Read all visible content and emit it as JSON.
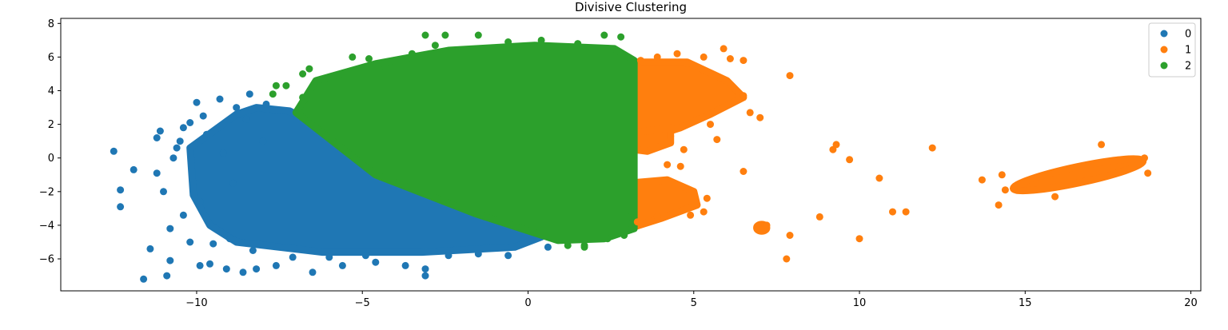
{
  "chart_data": {
    "type": "scatter",
    "title": "Divisive Clustering",
    "xlabel": "",
    "ylabel": "",
    "xlim": [
      -14.1,
      20.3
    ],
    "ylim": [
      -7.9,
      8.3
    ],
    "xticks": [
      -10,
      -5,
      0,
      5,
      10,
      15,
      20
    ],
    "yticks": [
      -6,
      -4,
      -2,
      0,
      2,
      4,
      6,
      8
    ],
    "xtick_labels": [
      "−10",
      "−5",
      "0",
      "5",
      "10",
      "15",
      "20"
    ],
    "ytick_labels": [
      "−6",
      "−4",
      "−2",
      "0",
      "2",
      "4",
      "6",
      "8"
    ],
    "grid": false,
    "legend_position": "top-right",
    "series": [
      {
        "name": "0",
        "color": "#1f77b4",
        "points": [
          [
            -12.5,
            0.4
          ],
          [
            -12.3,
            -1.9
          ],
          [
            -12.3,
            -2.9
          ],
          [
            -11.9,
            -0.7
          ],
          [
            -11.6,
            -7.2
          ],
          [
            -11.4,
            -5.4
          ],
          [
            -11.2,
            1.2
          ],
          [
            -11.1,
            1.6
          ],
          [
            -10.9,
            -7.0
          ],
          [
            -10.8,
            -6.1
          ],
          [
            -10.6,
            0.6
          ],
          [
            -10.4,
            1.8
          ],
          [
            -10.2,
            2.1
          ],
          [
            -10.0,
            3.3
          ],
          [
            -9.9,
            -6.4
          ],
          [
            -9.8,
            2.5
          ],
          [
            -9.6,
            -6.3
          ],
          [
            -9.3,
            3.5
          ],
          [
            -9.1,
            -6.6
          ],
          [
            -8.8,
            3.0
          ],
          [
            -8.6,
            -6.8
          ],
          [
            -8.4,
            3.8
          ],
          [
            -8.2,
            -6.6
          ],
          [
            -7.9,
            3.2
          ],
          [
            -7.6,
            -6.4
          ],
          [
            -6.5,
            -6.8
          ],
          [
            -5.6,
            -6.4
          ],
          [
            -4.6,
            -6.2
          ],
          [
            -3.7,
            -6.4
          ],
          [
            -3.1,
            -7.0
          ],
          [
            -3.1,
            -6.6
          ],
          [
            -2.4,
            -5.8
          ],
          [
            -1.5,
            -5.7
          ],
          [
            -0.6,
            -5.8
          ],
          [
            0.6,
            -5.3
          ],
          [
            -11.0,
            -2.0
          ],
          [
            -10.8,
            -4.2
          ],
          [
            -10.4,
            -3.4
          ],
          [
            -10.2,
            -5.0
          ],
          [
            -9.9,
            -2.6
          ],
          [
            -11.2,
            -0.9
          ],
          [
            -10.7,
            0.0
          ],
          [
            -9.5,
            -5.1
          ],
          [
            -9.0,
            -4.8
          ],
          [
            -8.3,
            -5.5
          ],
          [
            -7.1,
            -5.9
          ],
          [
            -6.0,
            -5.9
          ],
          [
            -4.9,
            -5.8
          ],
          [
            -10.5,
            1.0
          ],
          [
            -9.7,
            1.4
          ],
          [
            -9.2,
            0.3
          ],
          [
            -8.9,
            -1.5
          ],
          [
            -8.5,
            2.3
          ],
          [
            -8.0,
            1.0
          ]
        ],
        "clouds": [
          {
            "kind": "poly",
            "pts": [
              [
                -10.2,
                0.6
              ],
              [
                -8.8,
                2.6
              ],
              [
                -8.2,
                3.0
              ],
              [
                -7.2,
                2.8
              ],
              [
                0.4,
                -4.7
              ],
              [
                -0.4,
                -5.3
              ],
              [
                -3.2,
                -5.6
              ],
              [
                -6.2,
                -5.6
              ],
              [
                -8.8,
                -5.0
              ],
              [
                -9.6,
                -4.0
              ],
              [
                -10.1,
                -2.2
              ]
            ]
          }
        ]
      },
      {
        "name": "1",
        "color": "#ff7f0e",
        "points": [
          [
            3.4,
            5.8
          ],
          [
            3.9,
            6.0
          ],
          [
            4.5,
            6.2
          ],
          [
            4.8,
            5.6
          ],
          [
            5.3,
            6.0
          ],
          [
            5.9,
            6.5
          ],
          [
            6.1,
            5.9
          ],
          [
            6.5,
            5.8
          ],
          [
            7.9,
            4.9
          ],
          [
            6.5,
            3.7
          ],
          [
            6.7,
            2.7
          ],
          [
            7.0,
            2.4
          ],
          [
            5.5,
            2.0
          ],
          [
            5.7,
            1.1
          ],
          [
            4.3,
            1.3
          ],
          [
            4.7,
            0.5
          ],
          [
            4.2,
            -0.4
          ],
          [
            4.6,
            -0.5
          ],
          [
            5.4,
            -2.4
          ],
          [
            5.3,
            -3.2
          ],
          [
            4.9,
            -3.4
          ],
          [
            6.5,
            -0.8
          ],
          [
            7.1,
            -4.2
          ],
          [
            7.2,
            -4.0
          ],
          [
            7.8,
            -6.0
          ],
          [
            7.9,
            -4.6
          ],
          [
            8.8,
            -3.5
          ],
          [
            9.2,
            0.5
          ],
          [
            9.3,
            0.8
          ],
          [
            9.7,
            -0.1
          ],
          [
            10.0,
            -4.8
          ],
          [
            10.6,
            -1.2
          ],
          [
            11.0,
            -3.2
          ],
          [
            11.4,
            -3.2
          ],
          [
            12.2,
            0.6
          ],
          [
            13.7,
            -1.3
          ],
          [
            14.2,
            -2.8
          ],
          [
            14.3,
            -1.0
          ],
          [
            14.4,
            -1.9
          ],
          [
            18.7,
            -0.9
          ],
          [
            18.6,
            0.0
          ],
          [
            17.3,
            0.8
          ],
          [
            15.9,
            -2.3
          ],
          [
            3.3,
            -3.8
          ],
          [
            3.9,
            -3.5
          ]
        ],
        "clouds": [
          {
            "kind": "poly",
            "pts": [
              [
                3.2,
                5.7
              ],
              [
                4.8,
                5.7
              ],
              [
                6.0,
                4.6
              ],
              [
                6.5,
                3.6
              ],
              [
                5.5,
                2.6
              ],
              [
                4.6,
                1.8
              ],
              [
                3.8,
                1.3
              ],
              [
                3.2,
                1.6
              ]
            ]
          },
          {
            "kind": "poly",
            "pts": [
              [
                3.2,
                1.5
              ],
              [
                4.3,
                1.8
              ],
              [
                4.3,
                0.9
              ],
              [
                3.6,
                0.4
              ],
              [
                3.2,
                0.5
              ]
            ]
          },
          {
            "kind": "poly",
            "pts": [
              [
                3.0,
                -1.5
              ],
              [
                4.2,
                -1.3
              ],
              [
                5.0,
                -2.0
              ],
              [
                5.1,
                -2.8
              ],
              [
                4.0,
                -3.6
              ],
              [
                3.2,
                -4.1
              ],
              [
                3.0,
                -3.5
              ]
            ]
          },
          {
            "kind": "ellipse",
            "cx": 16.6,
            "cy": -1.0,
            "rx": 2.0,
            "ry": 0.48,
            "rot": -12
          },
          {
            "kind": "ellipse",
            "cx": 7.05,
            "cy": -4.15,
            "rx": 0.15,
            "ry": 0.2,
            "rot": 0
          }
        ]
      },
      {
        "name": "2",
        "color": "#2ca02c",
        "points": [
          [
            -7.6,
            4.3
          ],
          [
            -7.3,
            4.3
          ],
          [
            -7.7,
            3.8
          ],
          [
            -6.8,
            5.0
          ],
          [
            -6.6,
            5.3
          ],
          [
            -6.8,
            3.6
          ],
          [
            -5.3,
            6.0
          ],
          [
            -4.8,
            5.9
          ],
          [
            -4.3,
            5.4
          ],
          [
            -3.5,
            6.2
          ],
          [
            -3.1,
            7.3
          ],
          [
            -2.8,
            6.7
          ],
          [
            -2.5,
            7.3
          ],
          [
            -1.5,
            7.3
          ],
          [
            -0.6,
            6.9
          ],
          [
            0.4,
            7.0
          ],
          [
            1.5,
            6.8
          ],
          [
            2.3,
            7.3
          ],
          [
            2.8,
            7.2
          ],
          [
            1.2,
            -5.2
          ],
          [
            1.7,
            -5.2
          ],
          [
            2.4,
            -4.8
          ],
          [
            2.9,
            -4.6
          ],
          [
            3.1,
            -3.5
          ],
          [
            1.7,
            -5.3
          ]
        ],
        "clouds": [
          {
            "kind": "poly",
            "pts": [
              [
                -7.0,
                2.7
              ],
              [
                -6.4,
                4.6
              ],
              [
                -4.6,
                5.6
              ],
              [
                -2.4,
                6.4
              ],
              [
                0.2,
                6.7
              ],
              [
                2.6,
                6.5
              ],
              [
                3.2,
                5.8
              ],
              [
                3.2,
                -4.2
              ],
              [
                2.3,
                -4.8
              ],
              [
                0.9,
                -4.9
              ],
              [
                -1.6,
                -3.3
              ],
              [
                -4.6,
                -1.0
              ]
            ]
          }
        ]
      }
    ]
  }
}
